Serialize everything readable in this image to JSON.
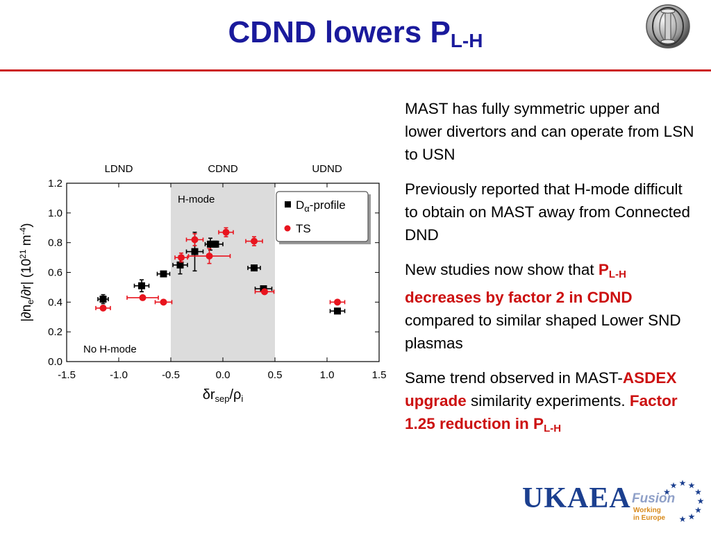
{
  "slide": {
    "title_main": "CDND lowers P",
    "title_sub": "L-H"
  },
  "text": {
    "p1": "MAST has fully symmetric upper and lower divertors and can operate from LSN to USN",
    "p2": "Previously reported that H-mode difficult to obtain on MAST away from Connected DND",
    "p3_a": "New studies now show that ",
    "p3_b": "P",
    "p3_b_sub": "L-H",
    "p3_c": " decreases by factor 2 in CDND",
    "p3_d": " compared to similar shaped Lower SND plasmas",
    "p4_a": "Same trend observed in MAST-",
    "p4_b": "ASDEX upgrade",
    "p4_c": " similarity experiments.  ",
    "p4_d": "Factor 1.25 reduction in P",
    "p4_d_sub": "L-H"
  },
  "logo": {
    "name": "UKAEA",
    "fusion": "Fusion",
    "working_line1": "Working",
    "working_line2": "in Europe",
    "colors": {
      "ukaea": "#1b3f8f",
      "fusion": "#8fa0c8",
      "working": "#d88a1c",
      "stars": "#1b3f8f"
    }
  },
  "colors": {
    "title": "#1a1a9c",
    "rule": "#cc1f1f",
    "highlight": "#cc1010",
    "ts": "#e8141e",
    "dalpha": "#000000",
    "band": "#dcdcdc"
  },
  "chart_data": {
    "type": "scatter",
    "xlabel": "δr",
    "xlabel_sub": "sep",
    "xlabel_den": "ρ",
    "xlabel_den_sub": "i",
    "ylabel": "|∂n",
    "ylabel_sub": "e",
    "ylabel_mid": "/∂r| (10",
    "ylabel_sup1": "21",
    "ylabel_mid2": " m",
    "ylabel_sup2": "-4",
    "ylabel_end": ")",
    "xlim": [
      -1.5,
      1.5
    ],
    "ylim": [
      0.0,
      1.2
    ],
    "xticks": [
      "-1.5",
      "-1.0",
      "-0.5",
      "0.0",
      "0.5",
      "1.0",
      "1.5"
    ],
    "yticks": [
      "0.0",
      "0.2",
      "0.4",
      "0.6",
      "0.8",
      "1.0",
      "1.2"
    ],
    "grid": false,
    "regions": [
      {
        "label": "LDND",
        "x_range": [
          -1.5,
          -0.5
        ]
      },
      {
        "label": "CDND",
        "x_range": [
          -0.5,
          0.5
        ]
      },
      {
        "label": "UDND",
        "x_range": [
          0.5,
          1.5
        ]
      }
    ],
    "band": {
      "x_range": [
        -0.5,
        0.5
      ],
      "label": "H-mode"
    },
    "annotation": "No H-mode",
    "legend": {
      "placement": "top-right",
      "entries": [
        "D",
        "TS"
      ],
      "dalpha_sub": "α",
      "dalpha_rest": "-profile"
    },
    "series": [
      {
        "name": "D",
        "name_sub": "α",
        "name_rest": "-profile",
        "marker": "square",
        "color": "#000000",
        "points": [
          {
            "x": -1.15,
            "y": 0.42,
            "xerr": 0.05,
            "yerr": 0.03
          },
          {
            "x": -0.78,
            "y": 0.51,
            "xerr": 0.07,
            "yerr": 0.04
          },
          {
            "x": -0.57,
            "y": 0.59,
            "xerr": 0.06,
            "yerr": 0.01
          },
          {
            "x": -0.41,
            "y": 0.65,
            "xerr": 0.07,
            "yerr": 0.06
          },
          {
            "x": -0.27,
            "y": 0.74,
            "xerr": 0.08,
            "yerr": 0.13
          },
          {
            "x": -0.12,
            "y": 0.79,
            "xerr": 0.05,
            "yerr": 0.04
          },
          {
            "x": -0.07,
            "y": 0.79,
            "xerr": 0.07,
            "yerr": 0.02
          },
          {
            "x": 0.3,
            "y": 0.63,
            "xerr": 0.06,
            "yerr": 0.01
          },
          {
            "x": 0.39,
            "y": 0.49,
            "xerr": 0.08,
            "yerr": 0.01
          },
          {
            "x": 1.1,
            "y": 0.34,
            "xerr": 0.07,
            "yerr": 0.01
          }
        ]
      },
      {
        "name": "TS",
        "marker": "circle",
        "color": "#e8141e",
        "points": [
          {
            "x": -1.15,
            "y": 0.36,
            "xerr": 0.07,
            "yerr": 0.01
          },
          {
            "x": -0.77,
            "y": 0.43,
            "xerr": 0.15,
            "yerr": 0.01
          },
          {
            "x": -0.57,
            "y": 0.4,
            "xerr": 0.08,
            "yerr": 0.01
          },
          {
            "x": -0.4,
            "y": 0.7,
            "xerr": 0.06,
            "yerr": 0.03
          },
          {
            "x": -0.27,
            "y": 0.82,
            "xerr": 0.08,
            "yerr": 0.04
          },
          {
            "x": -0.13,
            "y": 0.71,
            "xerr": 0.2,
            "yerr": 0.05
          },
          {
            "x": 0.03,
            "y": 0.87,
            "xerr": 0.07,
            "yerr": 0.03
          },
          {
            "x": 0.3,
            "y": 0.81,
            "xerr": 0.08,
            "yerr": 0.03
          },
          {
            "x": 0.4,
            "y": 0.47,
            "xerr": 0.09,
            "yerr": 0.01
          },
          {
            "x": 1.1,
            "y": 0.4,
            "xerr": 0.07,
            "yerr": 0.01
          }
        ]
      }
    ]
  }
}
